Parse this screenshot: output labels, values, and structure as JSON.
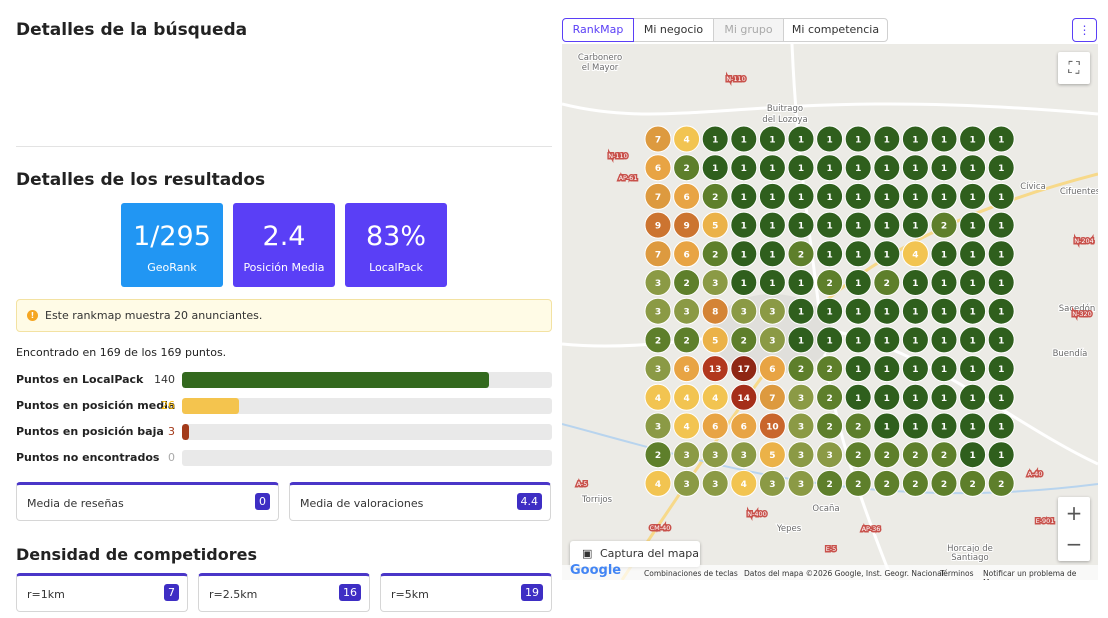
{
  "search_title": "Detalles de la búsqueda",
  "results_title": "Detalles de los resultados",
  "kpis": [
    {
      "value": "1/295",
      "label": "GeoRank",
      "color": "#2196f3"
    },
    {
      "value": "2.4",
      "label": "Posición Media",
      "color": "#5a3ff6"
    },
    {
      "value": "83%",
      "label": "LocalPack",
      "color": "#5a3ff6"
    }
  ],
  "alert": "Este rankmap muestra 20 anunciantes.",
  "found": {
    "prefix": "Encontrado en",
    "found": 169,
    "middle": "de los",
    "total": 169,
    "suffix": "puntos."
  },
  "bars": [
    {
      "label": "Puntos en LocalPack",
      "value": 140,
      "color": "#33691e",
      "value_color": "#333333"
    },
    {
      "label": "Puntos en posición media",
      "value": 26,
      "color": "#f4c44e",
      "value_color": "#f4b400"
    },
    {
      "label": "Puntos en posición baja",
      "value": 3,
      "color": "#a33a1a",
      "value_color": "#a33a1a"
    },
    {
      "label": "Puntos no encontrados",
      "value": 0,
      "color": "#999999",
      "value_color": "#aaaaaa"
    }
  ],
  "averages": [
    {
      "label": "Media de reseñas",
      "value": 0
    },
    {
      "label": "Media de valoraciones",
      "value": 4.4
    }
  ],
  "density_title": "Densidad de competidores",
  "density": [
    {
      "label": "r=1km",
      "value": 7
    },
    {
      "label": "r=2.5km",
      "value": 16
    },
    {
      "label": "r=5km",
      "value": 19
    }
  ],
  "tabs": [
    {
      "label": "RankMap",
      "state": "active"
    },
    {
      "label": "Mi negocio",
      "state": "normal"
    },
    {
      "label": "Mi grupo",
      "state": "disabled"
    },
    {
      "label": "Mi competencia",
      "state": "normal"
    }
  ],
  "map": {
    "labels": [
      "Carbonero",
      "el Mayor",
      "N-110",
      "Buitrago",
      "del Lozoya",
      "N-110",
      "AP-61",
      "Cívica",
      "Cifuentes",
      "N-204",
      "Sacedón",
      "N-320",
      "Buendía",
      "A-40",
      "A-5",
      "Torrijos",
      "CM-40",
      "N-400",
      "Yepes",
      "Ocaña",
      "AP-36",
      "E-5",
      "Horcajo de",
      "Santiago",
      "E-901"
    ]
  },
  "grid": {
    "rows": [
      [
        7,
        4,
        1,
        1,
        1,
        1,
        1,
        1,
        1,
        1,
        1,
        1,
        1
      ],
      [
        6,
        2,
        1,
        1,
        1,
        1,
        1,
        1,
        1,
        1,
        1,
        1,
        1
      ],
      [
        7,
        6,
        2,
        1,
        1,
        1,
        1,
        1,
        1,
        1,
        1,
        1,
        1
      ],
      [
        9,
        9,
        5,
        1,
        1,
        1,
        1,
        1,
        1,
        1,
        2,
        1,
        1
      ],
      [
        7,
        6,
        2,
        1,
        1,
        2,
        1,
        1,
        1,
        4,
        1,
        1,
        1
      ],
      [
        3,
        2,
        3,
        1,
        1,
        1,
        2,
        1,
        2,
        1,
        1,
        1,
        1
      ],
      [
        3,
        3,
        8,
        3,
        3,
        1,
        1,
        1,
        1,
        1,
        1,
        1,
        1
      ],
      [
        2,
        2,
        5,
        2,
        3,
        1,
        1,
        1,
        1,
        1,
        1,
        1,
        1
      ],
      [
        3,
        6,
        13,
        17,
        6,
        2,
        2,
        1,
        1,
        1,
        1,
        1,
        1
      ],
      [
        4,
        4,
        4,
        14,
        7,
        3,
        2,
        1,
        1,
        1,
        1,
        1,
        1
      ],
      [
        3,
        4,
        6,
        6,
        10,
        3,
        2,
        2,
        1,
        1,
        1,
        1,
        1
      ],
      [
        2,
        3,
        3,
        3,
        5,
        3,
        3,
        2,
        2,
        2,
        2,
        1,
        1
      ],
      [
        4,
        3,
        3,
        4,
        3,
        3,
        2,
        2,
        2,
        2,
        2,
        2,
        2
      ]
    ],
    "palette": {
      "1": "#2f5f1d",
      "2": "#5e7f2b",
      "3": "#8b9a45",
      "4": "#f2c451",
      "5": "#ebb248",
      "6": "#e8a444",
      "7": "#dd9a3f",
      "8": "#d48436",
      "9": "#cc7430",
      "10": "#c9662c",
      "13": "#b2381e",
      "14": "#a52e19",
      "17": "#8f2714"
    }
  },
  "capture_button": "Captura del mapa",
  "footer": {
    "logo": "Google",
    "shortcuts": "Combinaciones de teclas",
    "data": "Datos del mapa ©2026 Google, Inst. Geogr. Nacional",
    "terms": "Términos",
    "report": "Notificar un problema de Maps"
  }
}
